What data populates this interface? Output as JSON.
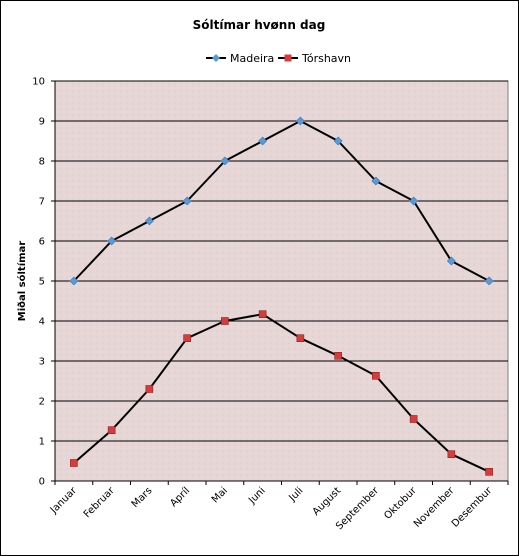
{
  "chart_data": {
    "type": "line",
    "title": "Sóltímar hvønn dag",
    "xlabel": "",
    "ylabel": "Miðal sóltímar",
    "categories": [
      "Januar",
      "Februar",
      "Mars",
      "Apríl",
      "Mai",
      "Juni",
      "Juli",
      "August",
      "September",
      "Oktobur",
      "November",
      "Desembur"
    ],
    "ylim": [
      0,
      10
    ],
    "yticks": [
      0,
      1,
      2,
      3,
      4,
      5,
      6,
      7,
      8,
      9,
      10
    ],
    "grid": true,
    "legend_position": "top",
    "plot_background": "#e8d8d8",
    "series": [
      {
        "name": "Madeira",
        "values": [
          5,
          6,
          6.5,
          7,
          8,
          8.5,
          9,
          8.5,
          7.5,
          7,
          5.5,
          5
        ],
        "color": "#5a9bd5",
        "marker": "diamond"
      },
      {
        "name": "Tórshavn",
        "values": [
          0.45,
          1.27,
          2.3,
          3.57,
          4.0,
          4.17,
          3.57,
          3.13,
          2.63,
          1.55,
          0.67,
          0.23
        ],
        "color": "#d63c3c",
        "marker": "square"
      }
    ]
  }
}
